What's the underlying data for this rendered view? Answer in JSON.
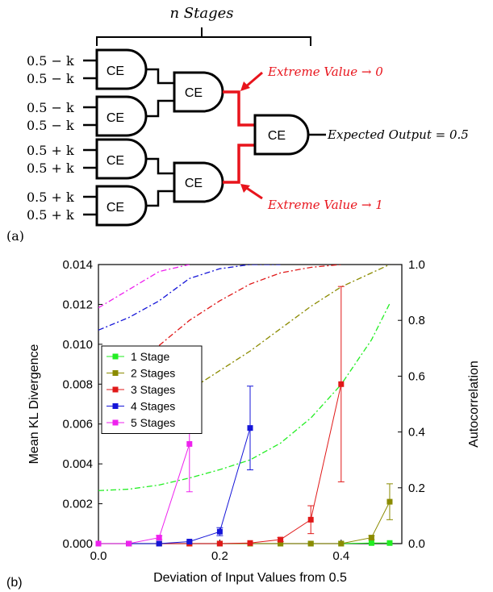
{
  "panel_a": {
    "label": "(a)",
    "stages_label": "n Stages",
    "gate_label": "CE",
    "inputs": [
      "0.5 − k",
      "0.5 − k",
      "0.5 − k",
      "0.5 − k",
      "0.5 + k",
      "0.5 + k",
      "0.5 + k",
      "0.5 + k"
    ],
    "annotation_top": "Extreme Value → 0",
    "annotation_bottom": "Extreme Value → 1",
    "output_label": "Expected Output = 0.5",
    "highlight_color": "#e8141c"
  },
  "panel_b": {
    "label": "(b)"
  },
  "chart_data": {
    "type": "line",
    "xlabel": "Deviation of Input Values from 0.5",
    "ylabel": "Mean KL Divergence",
    "y2label": "Autocorrelation",
    "xlim": [
      0,
      0.5
    ],
    "ylim": [
      0,
      0.014
    ],
    "y2lim": [
      0,
      1.0
    ],
    "xticks": [
      "0.0",
      "0.2",
      "0.4"
    ],
    "xtick_values": [
      0,
      0.2,
      0.4
    ],
    "yticks": [
      "0.000",
      "0.002",
      "0.004",
      "0.006",
      "0.008",
      "0.010",
      "0.012",
      "0.014"
    ],
    "ytick_values": [
      0,
      0.002,
      0.004,
      0.006,
      0.008,
      0.01,
      0.012,
      0.014
    ],
    "y2ticks": [
      "0.0",
      "0.2",
      "0.4",
      "0.6",
      "0.8",
      "1.0"
    ],
    "y2tick_values": [
      0,
      0.2,
      0.4,
      0.6,
      0.8,
      1.0
    ],
    "legend_placement": "center-left",
    "series": [
      {
        "name": "1 Stage",
        "color": "#22ee22",
        "x": [
          0,
          0.05,
          0.1,
          0.15,
          0.2,
          0.25,
          0.3,
          0.35,
          0.4,
          0.45,
          0.48
        ],
        "y": [
          0,
          0,
          0,
          0,
          0,
          0,
          0,
          0,
          0,
          3e-05,
          3e-05
        ],
        "err": [
          0,
          0,
          0,
          0,
          0,
          0,
          0,
          0,
          0,
          0,
          0
        ],
        "autocorr_x": [
          0,
          0.05,
          0.1,
          0.15,
          0.2,
          0.25,
          0.3,
          0.35,
          0.4,
          0.45,
          0.48
        ],
        "autocorr_y": [
          0.19,
          0.195,
          0.21,
          0.235,
          0.265,
          0.3,
          0.36,
          0.45,
          0.57,
          0.73,
          0.86
        ]
      },
      {
        "name": "2 Stages",
        "color": "#8b8b00",
        "x": [
          0,
          0.05,
          0.1,
          0.15,
          0.2,
          0.25,
          0.3,
          0.35,
          0.4,
          0.45,
          0.48
        ],
        "y": [
          0,
          0,
          0,
          0,
          0,
          0,
          0,
          0,
          0,
          0.0003,
          0.0021
        ],
        "err": [
          0,
          0,
          0,
          0,
          0,
          0,
          0,
          0,
          0,
          0.0001,
          0.0009
        ],
        "autocorr_x": [
          0.05,
          0.1,
          0.15,
          0.2,
          0.25,
          0.3,
          0.35,
          0.4,
          0.45,
          0.48
        ],
        "autocorr_y": [
          0.46,
          0.5,
          0.55,
          0.62,
          0.69,
          0.77,
          0.85,
          0.92,
          0.97,
          1.0
        ]
      },
      {
        "name": "3 Stages",
        "color": "#e01818",
        "x": [
          0,
          0.05,
          0.1,
          0.15,
          0.2,
          0.25,
          0.3,
          0.35,
          0.4
        ],
        "y": [
          0,
          0,
          0,
          0,
          0,
          3e-05,
          0.0002,
          0.0012,
          0.008
        ],
        "err": [
          0,
          0,
          0,
          0,
          0,
          0,
          0.0001,
          0.0007,
          0.0049
        ],
        "autocorr_x": [
          0.1,
          0.15,
          0.2,
          0.25,
          0.3,
          0.35,
          0.4
        ],
        "autocorr_y": [
          0.71,
          0.8,
          0.87,
          0.93,
          0.97,
          0.99,
          1.0
        ]
      },
      {
        "name": "4 Stages",
        "color": "#1515d8",
        "x": [
          0,
          0.05,
          0.1,
          0.15,
          0.2,
          0.25
        ],
        "y": [
          0,
          0,
          0,
          0.0001,
          0.0006,
          0.0058
        ],
        "err": [
          0,
          0,
          0,
          0,
          0.0002,
          0.0021
        ],
        "autocorr_x": [
          0,
          0.05,
          0.1,
          0.15,
          0.2,
          0.25,
          0.3
        ],
        "autocorr_y": [
          0.765,
          0.81,
          0.87,
          0.95,
          0.985,
          1.0,
          1.0
        ]
      },
      {
        "name": "5 Stages",
        "color": "#ee22ee",
        "x": [
          0,
          0.05,
          0.1,
          0.15
        ],
        "y": [
          0,
          0,
          0.0003,
          0.005
        ],
        "err": [
          0,
          0,
          0.0001,
          0.0024
        ],
        "autocorr_x": [
          0,
          0.05,
          0.1,
          0.15
        ],
        "autocorr_y": [
          0.845,
          0.91,
          0.975,
          1.0
        ]
      }
    ]
  }
}
